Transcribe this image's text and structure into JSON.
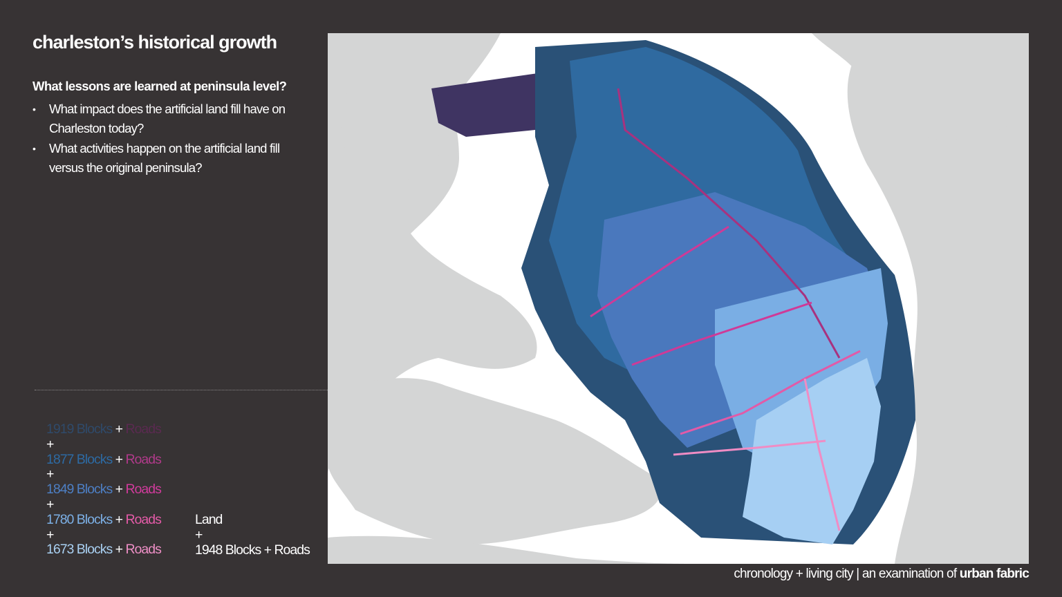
{
  "title": "charleston’s historical growth",
  "question": "What lessons are learned at peninsula level?",
  "bullets": [
    "What impact does the artificial land fill have on Charleston today?",
    "What activities happen on the artificial land fill versus the original peninsula?"
  ],
  "legend": {
    "plus": "+",
    "word_plus": " + ",
    "roads_label": "Roads",
    "entries": [
      {
        "year_blocks": "1919 Blocks",
        "blocks_color": "#2f4a6a",
        "roads_color": "#5a2a50"
      },
      {
        "year_blocks": "1877 Blocks",
        "blocks_color": "#2d6aa3",
        "roads_color": "#b03a8a"
      },
      {
        "year_blocks": "1849 Blocks",
        "blocks_color": "#4d7fc4",
        "roads_color": "#d13b9c"
      },
      {
        "year_blocks": "1780 Blocks",
        "blocks_color": "#7cb0e6",
        "roads_color": "#e45ba8"
      },
      {
        "year_blocks": "1673  Blocks",
        "blocks_color": "#a9d0f2",
        "roads_color": "#ee8fc6"
      }
    ],
    "land_label": "Land",
    "land_plus": "+",
    "current_label": "1948 Blocks + Roads"
  },
  "map": {
    "colors": {
      "water": "#ffffff",
      "land": "#d4d5d5",
      "blocks_1948": "#3f3462",
      "blocks_1919": "#2a5177",
      "blocks_1877": "#2f6aa0",
      "blocks_1849": "#4a78bd",
      "blocks_1780": "#7aaee4",
      "blocks_1673": "#a6cff3",
      "road_1877": "#a8327f",
      "road_1849": "#cf3a97",
      "road_1780": "#e25aa7",
      "road_1673": "#f08cc4"
    }
  },
  "footer": {
    "prefix": "chronology + living city | an examination of ",
    "bold": "urban fabric"
  }
}
